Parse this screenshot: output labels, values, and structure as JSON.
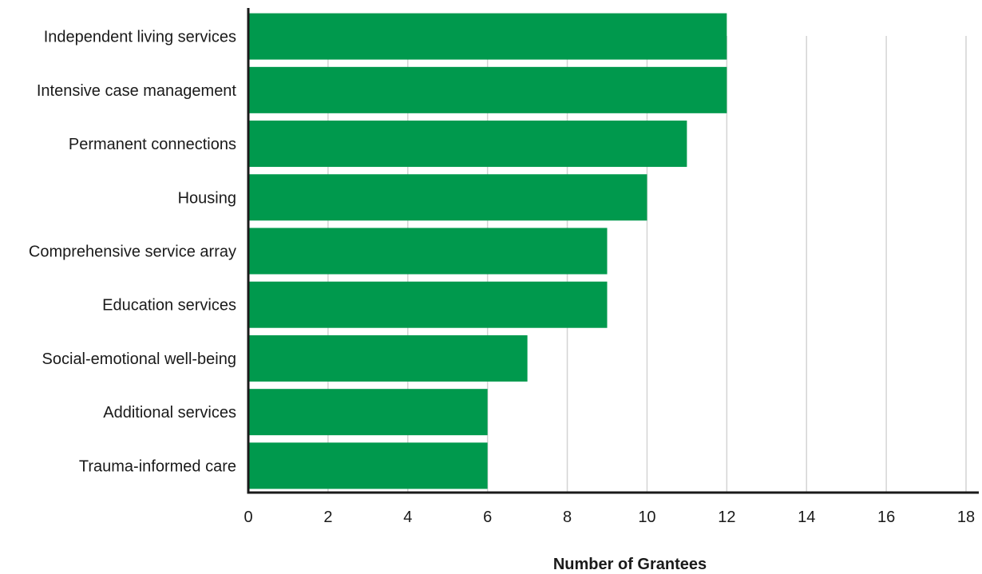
{
  "chart_data": {
    "type": "bar",
    "orientation": "horizontal",
    "title": "",
    "xlabel": "Number of Grantees",
    "ylabel": "",
    "categories": [
      "Independent living services",
      "Intensive case management",
      "Permanent connections",
      "Housing",
      "Comprehensive service array",
      "Education services",
      "Social-emotional well-being",
      "Additional services",
      "Trauma-informed care"
    ],
    "values": [
      12,
      12,
      11,
      10,
      9,
      9,
      7,
      6,
      6
    ],
    "xlim": [
      0,
      18
    ],
    "xticks": [
      "0",
      "2",
      "4",
      "6",
      "8",
      "10",
      "12",
      "14",
      "16",
      "18"
    ],
    "grid": "vertical",
    "legend": "none",
    "colors": {
      "bar": "#00994d",
      "grid": "#d4d4d4",
      "axis": "#1a1a1a"
    }
  }
}
